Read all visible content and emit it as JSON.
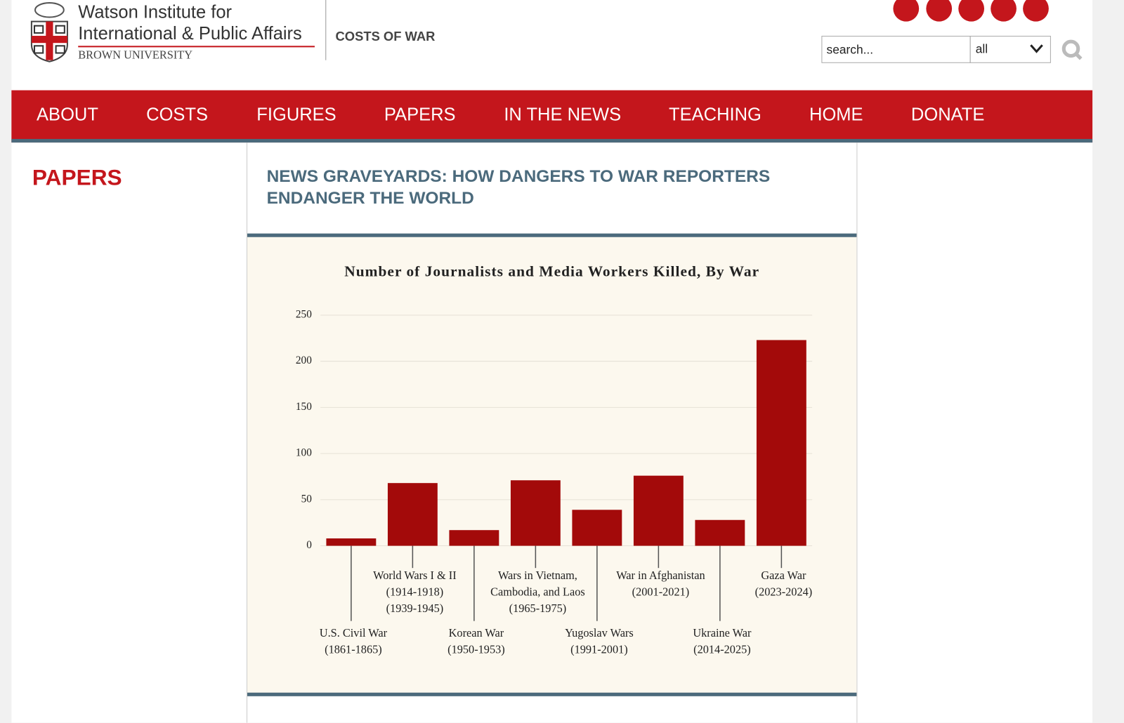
{
  "header": {
    "institute_line1": "Watson Institute for",
    "institute_line2": "International & Public Affairs",
    "university": "BROWN UNIVERSITY",
    "site": "COSTS OF WAR",
    "search_placeholder": "search...",
    "search_scope": "all"
  },
  "nav": [
    "ABOUT",
    "COSTS",
    "FIGURES",
    "PAPERS",
    "IN THE NEWS",
    "TEACHING",
    "HOME",
    "DONATE"
  ],
  "sidebar_title": "PAPERS",
  "article_title": "NEWS GRAVEYARDS: HOW DANGERS TO WAR REPORTERS ENDANGER THE WORLD",
  "chart_data": {
    "type": "bar",
    "title": "Number of Journalists and Media Workers Killed, By War",
    "categories": [
      [
        "U.S. Civil War",
        "(1861-1865)"
      ],
      [
        "World Wars I & II",
        "(1914-1918)",
        "(1939-1945)"
      ],
      [
        "Korean War",
        "(1950-1953)"
      ],
      [
        "Wars in Vietnam,",
        "Cambodia, and Laos",
        "(1965-1975)"
      ],
      [
        "Yugoslav Wars",
        "(1991-2001)"
      ],
      [
        "War in Afghanistan",
        "(2001-2021)"
      ],
      [
        "Ukraine War",
        "(2014-2025)"
      ],
      [
        "Gaza War",
        "(2023-2024)"
      ]
    ],
    "values": [
      8,
      68,
      17,
      71,
      39,
      76,
      28,
      223
    ],
    "color": "#a30a0a",
    "ylim": [
      0,
      250
    ],
    "yticks": [
      0,
      50,
      100,
      150,
      200,
      250
    ],
    "grid": true
  }
}
